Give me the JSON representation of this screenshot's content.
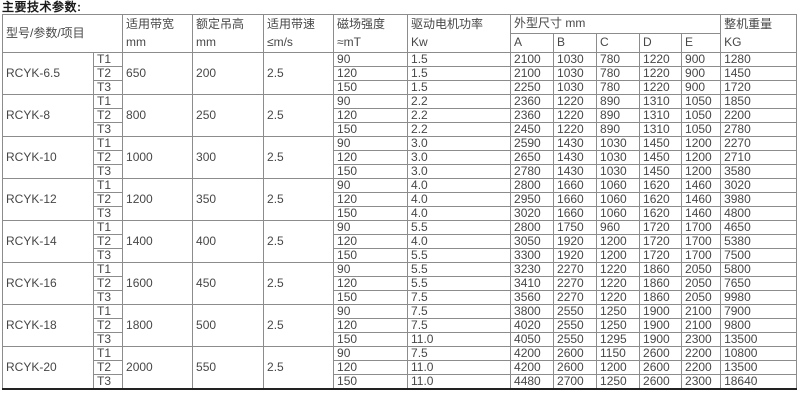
{
  "title": "主要技术参数:",
  "table": {
    "headers": {
      "model": "型号/参数/项目",
      "belt_width": "适用带宽",
      "belt_width_unit": "mm",
      "lift_height": "额定吊高",
      "lift_height_unit": "mm",
      "belt_speed": "适用带速",
      "belt_speed_unit": "≤m/s",
      "magnetic": "磁场强度",
      "magnetic_unit": "≈mT",
      "motor_power": "驱动电机功率",
      "motor_power_unit": "Kw",
      "dimensions": "外型尺寸 mm",
      "dim_a": "A",
      "dim_b": "B",
      "dim_c": "C",
      "dim_d": "D",
      "dim_e": "E",
      "weight": "整机重量",
      "weight_unit": "KG"
    },
    "groups": [
      {
        "model": "RCYK-6.5",
        "belt_width": "650",
        "lift_height": "200",
        "belt_speed": "2.5",
        "rows": [
          {
            "t": "T1",
            "magnetic": "90",
            "power": "1.5",
            "A": "2100",
            "B": "1030",
            "C": "780",
            "D": "1220",
            "E": "900",
            "weight": "1280"
          },
          {
            "t": "T2",
            "magnetic": "120",
            "power": "1.5",
            "A": "2100",
            "B": "1030",
            "C": "780",
            "D": "1220",
            "E": "900",
            "weight": "1450"
          },
          {
            "t": "T3",
            "magnetic": "150",
            "power": "1.5",
            "A": "2250",
            "B": "1030",
            "C": "780",
            "D": "1220",
            "E": "900",
            "weight": "1720"
          }
        ]
      },
      {
        "model": "RCYK-8",
        "belt_width": "800",
        "lift_height": "250",
        "belt_speed": "2.5",
        "rows": [
          {
            "t": "T1",
            "magnetic": "90",
            "power": "2.2",
            "A": "2360",
            "B": "1220",
            "C": "890",
            "D": "1310",
            "E": "1050",
            "weight": "1850"
          },
          {
            "t": "T2",
            "magnetic": "120",
            "power": "2.2",
            "A": "2360",
            "B": "1220",
            "C": "890",
            "D": "1310",
            "E": "1050",
            "weight": "2200"
          },
          {
            "t": "T3",
            "magnetic": "150",
            "power": "2.2",
            "A": "2450",
            "B": "1220",
            "C": "890",
            "D": "1310",
            "E": "1050",
            "weight": "2780"
          }
        ]
      },
      {
        "model": "RCYK-10",
        "belt_width": "1000",
        "lift_height": "300",
        "belt_speed": "2.5",
        "rows": [
          {
            "t": "T1",
            "magnetic": "90",
            "power": "3.0",
            "A": "2590",
            "B": "1430",
            "C": "1030",
            "D": "1450",
            "E": "1200",
            "weight": "2270"
          },
          {
            "t": "T2",
            "magnetic": "120",
            "power": "3.0",
            "A": "2650",
            "B": "1430",
            "C": "1030",
            "D": "1450",
            "E": "1200",
            "weight": "2710"
          },
          {
            "t": "T3",
            "magnetic": "150",
            "power": "3.0",
            "A": "2780",
            "B": "1430",
            "C": "1030",
            "D": "1450",
            "E": "1200",
            "weight": "3580"
          }
        ]
      },
      {
        "model": "RCYK-12",
        "belt_width": "1200",
        "lift_height": "350",
        "belt_speed": "2.5",
        "rows": [
          {
            "t": "T1",
            "magnetic": "90",
            "power": "4.0",
            "A": "2800",
            "B": "1660",
            "C": "1060",
            "D": "1620",
            "E": "1460",
            "weight": "3020"
          },
          {
            "t": "T2",
            "magnetic": "120",
            "power": "4.0",
            "A": "2950",
            "B": "1660",
            "C": "1060",
            "D": "1620",
            "E": "1460",
            "weight": "3980"
          },
          {
            "t": "T3",
            "magnetic": "150",
            "power": "4.0",
            "A": "3020",
            "B": "1660",
            "C": "1060",
            "D": "1620",
            "E": "1460",
            "weight": "4800"
          }
        ]
      },
      {
        "model": "RCYK-14",
        "belt_width": "1400",
        "lift_height": "400",
        "belt_speed": "2.5",
        "rows": [
          {
            "t": "T1",
            "magnetic": "90",
            "power": "5.5",
            "A": "2800",
            "B": "1750",
            "C": "960",
            "D": "1720",
            "E": "1700",
            "weight": "4650"
          },
          {
            "t": "T2",
            "magnetic": "120",
            "power": "4.0",
            "A": "3050",
            "B": "1920",
            "C": "1200",
            "D": "1720",
            "E": "1700",
            "weight": "5380"
          },
          {
            "t": "T3",
            "magnetic": "150",
            "power": "5.5",
            "A": "3300",
            "B": "1920",
            "C": "1200",
            "D": "1720",
            "E": "1700",
            "weight": "7500"
          }
        ]
      },
      {
        "model": "RCYK-16",
        "belt_width": "1600",
        "lift_height": "450",
        "belt_speed": "2.5",
        "rows": [
          {
            "t": "T1",
            "magnetic": "90",
            "power": "5.5",
            "A": "3230",
            "B": "2270",
            "C": "1220",
            "D": "1860",
            "E": "2050",
            "weight": "5800"
          },
          {
            "t": "T2",
            "magnetic": "120",
            "power": "5.5",
            "A": "3410",
            "B": "2270",
            "C": "1220",
            "D": "1860",
            "E": "2050",
            "weight": "7650"
          },
          {
            "t": "T3",
            "magnetic": "150",
            "power": "7.5",
            "A": "3560",
            "B": "2270",
            "C": "1220",
            "D": "1860",
            "E": "2050",
            "weight": "9980"
          }
        ]
      },
      {
        "model": "RCYK-18",
        "belt_width": "1800",
        "lift_height": "500",
        "belt_speed": "2.5",
        "rows": [
          {
            "t": "T1",
            "magnetic": "90",
            "power": "7.5",
            "A": "3800",
            "B": "2550",
            "C": "1250",
            "D": "1900",
            "E": "2100",
            "weight": "7900"
          },
          {
            "t": "T2",
            "magnetic": "120",
            "power": "7.5",
            "A": "4020",
            "B": "2550",
            "C": "1250",
            "D": "1900",
            "E": "2100",
            "weight": "9800"
          },
          {
            "t": "T3",
            "magnetic": "150",
            "power": "11.0",
            "A": "4050",
            "B": "2550",
            "C": "1295",
            "D": "1900",
            "E": "2300",
            "weight": "13500"
          }
        ]
      },
      {
        "model": "RCYK-20",
        "belt_width": "2000",
        "lift_height": "550",
        "belt_speed": "2.5",
        "rows": [
          {
            "t": "T1",
            "magnetic": "90",
            "power": "7.5",
            "A": "4200",
            "B": "2600",
            "C": "1150",
            "D": "2600",
            "E": "2200",
            "weight": "10800"
          },
          {
            "t": "T2",
            "magnetic": "120",
            "power": "11.0",
            "A": "4200",
            "B": "2600",
            "C": "1200",
            "D": "2600",
            "E": "2200",
            "weight": "13500"
          },
          {
            "t": "T3",
            "magnetic": "150",
            "power": "11.0",
            "A": "4480",
            "B": "2700",
            "C": "1250",
            "D": "2600",
            "E": "2300",
            "weight": "18640"
          }
        ]
      }
    ]
  }
}
